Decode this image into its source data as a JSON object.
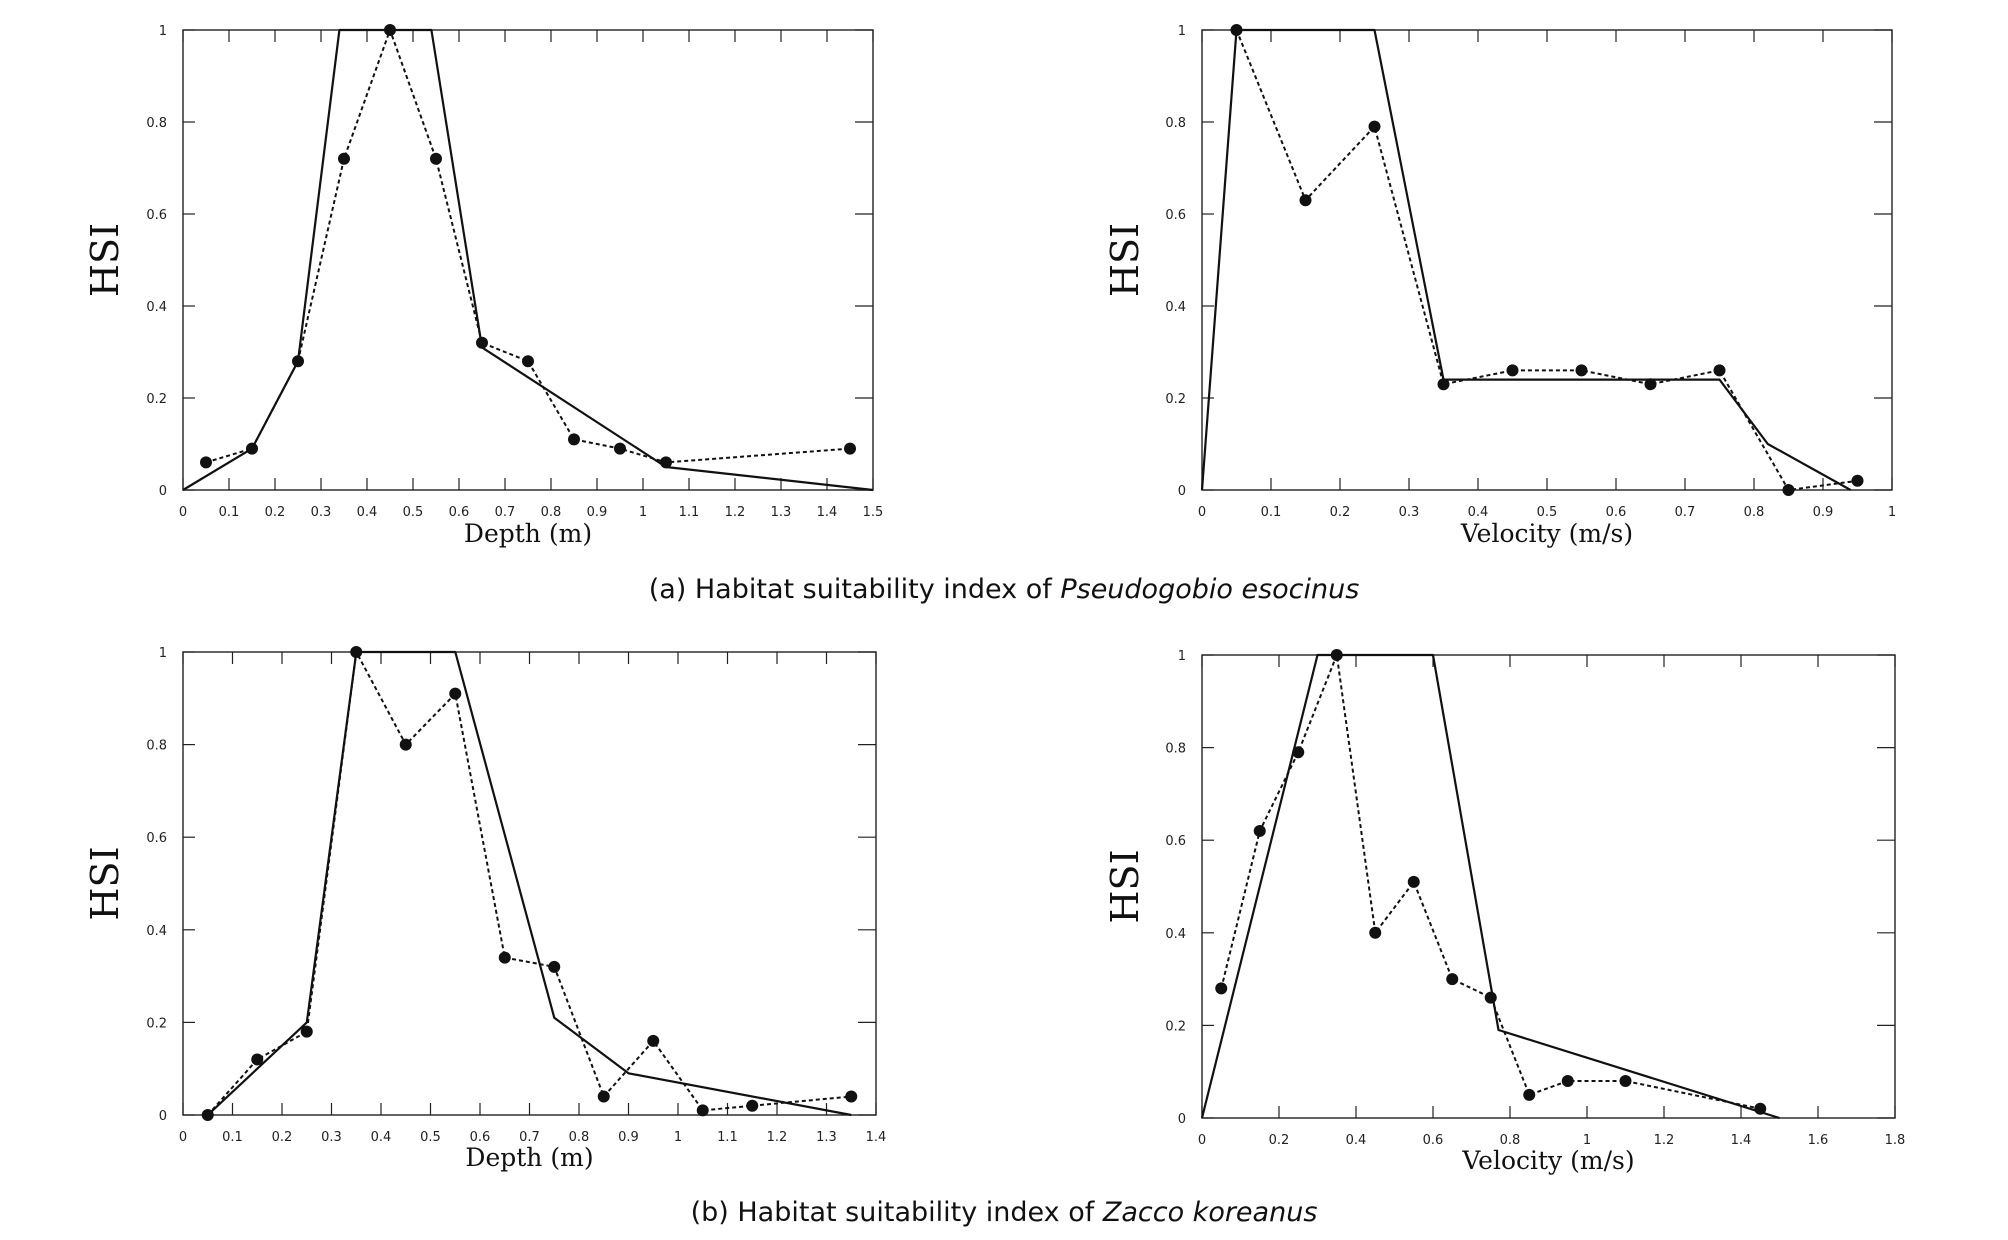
{
  "captions": [
    {
      "prefix": "(a) Habitat suitability index of ",
      "species": "Pseudogobio esocinus"
    },
    {
      "prefix": "(b) Habitat suitability index of ",
      "species": "Zacco koreanus"
    }
  ],
  "chart_data": [
    {
      "type": "line",
      "xlabel": "Depth (m)",
      "ylabel": "HSI",
      "xlim": [
        0,
        1.5
      ],
      "ylim": [
        0,
        1
      ],
      "xticks": [
        "0",
        "0.1",
        "0.2",
        "0.3",
        "0.4",
        "0.5",
        "0.6",
        "0.7",
        "0.8",
        "0.9",
        "1",
        "1.1",
        "1.2",
        "1.3",
        "1.4",
        "1.5"
      ],
      "yticks": [
        "0",
        "0.2",
        "0.4",
        "0.6",
        "0.8",
        "1"
      ],
      "series": [
        {
          "style": "solid",
          "x": [
            0,
            0.15,
            0.25,
            0.34,
            0.54,
            0.65,
            1.05,
            1.5
          ],
          "y": [
            0,
            0.09,
            0.28,
            1.0,
            1.0,
            0.31,
            0.05,
            0
          ]
        },
        {
          "style": "dashed-markers",
          "x": [
            0.05,
            0.15,
            0.25,
            0.35,
            0.45,
            0.55,
            0.65,
            0.75,
            0.85,
            0.95,
            1.05,
            1.45
          ],
          "y": [
            0.06,
            0.09,
            0.28,
            0.72,
            1.0,
            0.72,
            0.32,
            0.28,
            0.11,
            0.09,
            0.06,
            0.09
          ]
        }
      ]
    },
    {
      "type": "line",
      "xlabel": "Velocity (m/s)",
      "ylabel": "HSI",
      "xlim": [
        0,
        1
      ],
      "ylim": [
        0,
        1
      ],
      "xticks": [
        "0",
        "0.1",
        "0.2",
        "0.3",
        "0.4",
        "0.5",
        "0.6",
        "0.7",
        "0.8",
        "0.9",
        "1"
      ],
      "yticks": [
        "0",
        "0.2",
        "0.4",
        "0.6",
        "0.8",
        "1"
      ],
      "series": [
        {
          "style": "solid",
          "x": [
            0,
            0.05,
            0.25,
            0.35,
            0.75,
            0.82,
            0.94
          ],
          "y": [
            0,
            1.0,
            1.0,
            0.24,
            0.24,
            0.1,
            0
          ]
        },
        {
          "style": "dashed-markers",
          "x": [
            0.05,
            0.15,
            0.25,
            0.35,
            0.45,
            0.55,
            0.65,
            0.75,
            0.85,
            0.95
          ],
          "y": [
            1.0,
            0.63,
            0.79,
            0.23,
            0.26,
            0.26,
            0.23,
            0.26,
            0.0,
            0.02
          ]
        }
      ]
    },
    {
      "type": "line",
      "xlabel": "Depth (m)",
      "ylabel": "HSI",
      "xlim": [
        0,
        1.4
      ],
      "ylim": [
        0,
        1
      ],
      "xticks": [
        "0",
        "0.1",
        "0.2",
        "0.3",
        "0.4",
        "0.5",
        "0.6",
        "0.7",
        "0.8",
        "0.9",
        "1",
        "1.1",
        "1.2",
        "1.3",
        "1.4"
      ],
      "yticks": [
        "0",
        "0.2",
        "0.4",
        "0.6",
        "0.8",
        "1"
      ],
      "series": [
        {
          "style": "solid",
          "x": [
            0.05,
            0.25,
            0.35,
            0.55,
            0.75,
            0.9,
            1.35
          ],
          "y": [
            0,
            0.2,
            1.0,
            1.0,
            0.21,
            0.09,
            0
          ]
        },
        {
          "style": "dashed-markers",
          "x": [
            0.05,
            0.15,
            0.25,
            0.35,
            0.45,
            0.55,
            0.65,
            0.75,
            0.85,
            0.95,
            1.05,
            1.15,
            1.35
          ],
          "y": [
            0,
            0.12,
            0.18,
            1.0,
            0.8,
            0.91,
            0.34,
            0.32,
            0.04,
            0.16,
            0.01,
            0.02,
            0.04
          ]
        }
      ]
    },
    {
      "type": "line",
      "xlabel": "Velocity (m/s)",
      "ylabel": "HSI",
      "xlim": [
        0,
        1.8
      ],
      "ylim": [
        0,
        1
      ],
      "xticks": [
        "0",
        "0.2",
        "0.4",
        "0.6",
        "0.8",
        "1",
        "1.2",
        "1.4",
        "1.6",
        "1.8"
      ],
      "yticks": [
        "0",
        "0.2",
        "0.4",
        "0.6",
        "0.8",
        "1"
      ],
      "series": [
        {
          "style": "solid",
          "x": [
            0,
            0.3,
            0.6,
            0.77,
            1.5
          ],
          "y": [
            0,
            1.0,
            1.0,
            0.19,
            0
          ]
        },
        {
          "style": "dashed-markers",
          "x": [
            0.05,
            0.15,
            0.25,
            0.35,
            0.45,
            0.55,
            0.65,
            0.75,
            0.85,
            0.95,
            1.1,
            1.45
          ],
          "y": [
            0.28,
            0.62,
            0.79,
            1.0,
            0.4,
            0.51,
            0.3,
            0.26,
            0.05,
            0.08,
            0.08,
            0.02
          ]
        }
      ]
    }
  ]
}
